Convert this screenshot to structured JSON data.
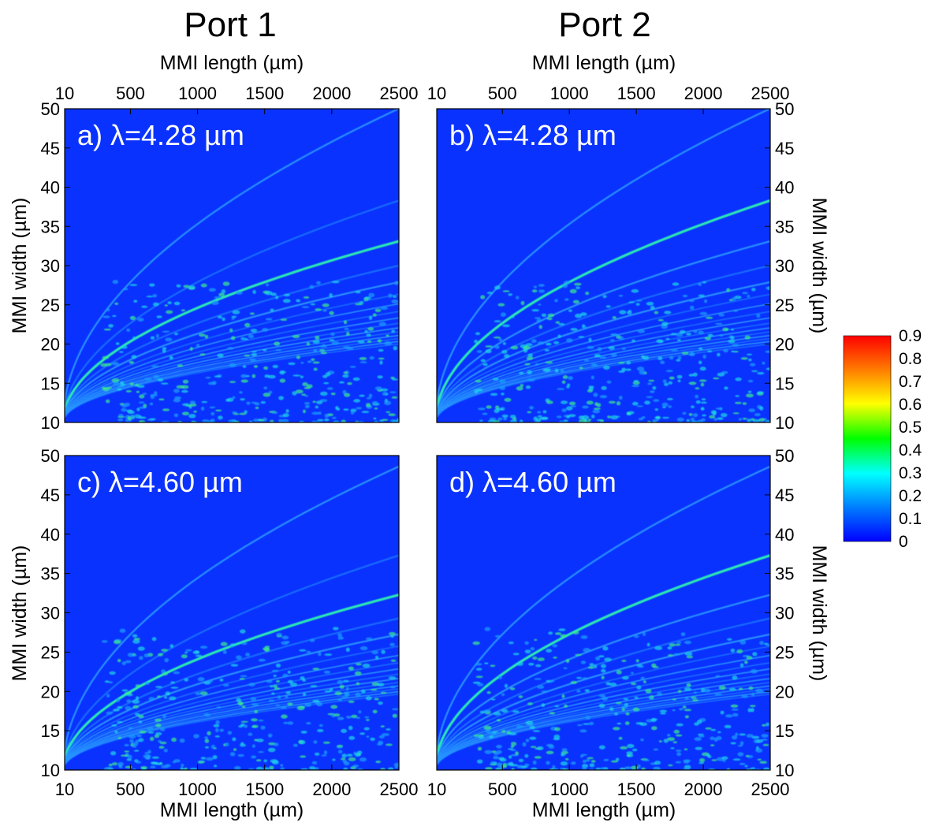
{
  "columns": [
    {
      "title": "Port 1",
      "x_axis_label": "MMI length (µm)"
    },
    {
      "title": "Port 2",
      "x_axis_label": "MMI length (µm)"
    }
  ],
  "y_axis_label": "MMI width (µm)",
  "chart_data": [
    {
      "type": "heatmap",
      "panel": "a)",
      "annotation": "a) λ=4.28 µm",
      "port": "Port 1",
      "wavelength_um": 4.28,
      "xlabel": "MMI length (µm)",
      "ylabel": "MMI width (µm)",
      "xlim": [
        10,
        2500
      ],
      "ylim": [
        10,
        50
      ],
      "xticks": [
        10,
        500,
        1000,
        1500,
        2000,
        2500
      ],
      "yticks": [
        10,
        15,
        20,
        25,
        30,
        35,
        40,
        45,
        50
      ],
      "x_axis_position": "top",
      "y_axis_position": "left"
    },
    {
      "type": "heatmap",
      "panel": "b)",
      "annotation": "b) λ=4.28 µm",
      "port": "Port 2",
      "wavelength_um": 4.28,
      "xlabel": "MMI length (µm)",
      "ylabel": "MMI width (µm)",
      "xlim": [
        10,
        2500
      ],
      "ylim": [
        10,
        50
      ],
      "xticks": [
        10,
        500,
        1000,
        1500,
        2000,
        2500
      ],
      "yticks": [
        10,
        15,
        20,
        25,
        30,
        35,
        40,
        45,
        50
      ],
      "x_axis_position": "top",
      "y_axis_position": "right"
    },
    {
      "type": "heatmap",
      "panel": "c)",
      "annotation": "c) λ=4.60 µm",
      "port": "Port 1",
      "wavelength_um": 4.6,
      "xlabel": "MMI length (µm)",
      "ylabel": "MMI width (µm)",
      "xlim": [
        10,
        2500
      ],
      "ylim": [
        10,
        50
      ],
      "xticks": [
        10,
        500,
        1000,
        1500,
        2000,
        2500
      ],
      "yticks": [
        10,
        15,
        20,
        25,
        30,
        35,
        40,
        45,
        50
      ],
      "x_axis_position": "bottom",
      "y_axis_position": "left"
    },
    {
      "type": "heatmap",
      "panel": "d)",
      "annotation": "d) λ=4.60 µm",
      "port": "Port 2",
      "wavelength_um": 4.6,
      "xlabel": "MMI length (µm)",
      "ylabel": "MMI width (µm)",
      "xlim": [
        10,
        2500
      ],
      "ylim": [
        10,
        50
      ],
      "xticks": [
        10,
        500,
        1000,
        1500,
        2000,
        2500
      ],
      "yticks": [
        10,
        15,
        20,
        25,
        30,
        35,
        40,
        45,
        50
      ],
      "x_axis_position": "bottom",
      "y_axis_position": "right"
    }
  ],
  "colorbar": {
    "range": [
      0,
      0.9
    ],
    "ticks": [
      0,
      0.1,
      0.2,
      0.3,
      0.4,
      0.5,
      0.6,
      0.7,
      0.8,
      0.9
    ],
    "tick_labels": [
      "0",
      "0.1",
      "0.2",
      "0.3",
      "0.4",
      "0.5",
      "0.6",
      "0.7",
      "0.8",
      "0.9"
    ],
    "colors": [
      "#0000ff",
      "#0080ff",
      "#00ffff",
      "#00ff00",
      "#ffff00",
      "#ff8000",
      "#ff0000"
    ],
    "background_color": "#0a32ff"
  }
}
